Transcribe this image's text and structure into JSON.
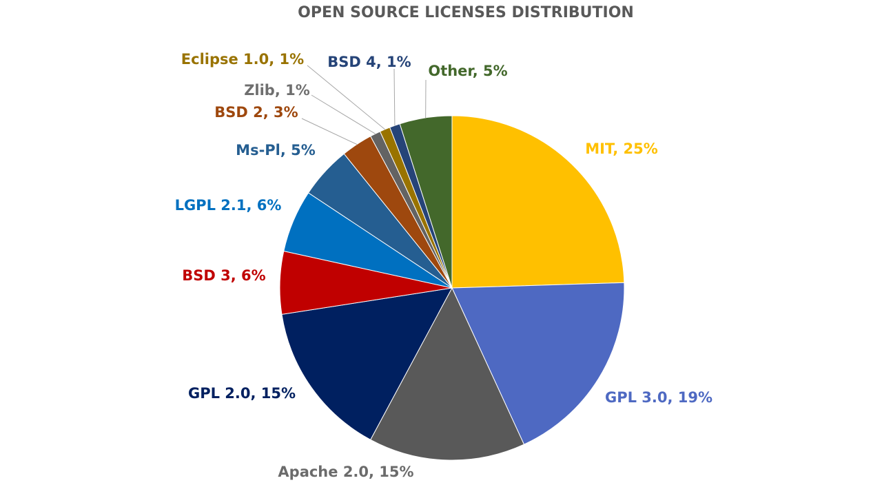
{
  "chart_data": {
    "type": "pie",
    "title": "OPEN SOURCE LICENSES DISTRIBUTION",
    "labels": [
      "MIT, 25%",
      "GPL 3.0, 19%",
      "Apache 2.0, 15%",
      "GPL 2.0, 15%",
      "BSD 3, 6%",
      "LGPL 2.1, 6%",
      "Ms-Pl, 5%",
      "BSD 2, 3%",
      "Zlib, 1%",
      "Eclipse 1.0, 1%",
      "BSD 4, 1%",
      "Other, 5%"
    ],
    "values": [
      25,
      19,
      15,
      15,
      6,
      6,
      5,
      3,
      1,
      1,
      1,
      5
    ],
    "colors": [
      "#FFC000",
      "#4E69C2",
      "#595959",
      "#002060",
      "#C00000",
      "#0070C0",
      "#255E91",
      "#9E480E",
      "#636363",
      "#997300",
      "#264478",
      "#43682B"
    ],
    "label_colors": [
      "#FFC000",
      "#4E69C2",
      "#6B6B6B",
      "#002060",
      "#C00000",
      "#0070C0",
      "#255E91",
      "#9E480E",
      "#6F6F6F",
      "#997300",
      "#264478",
      "#43682B"
    ]
  }
}
